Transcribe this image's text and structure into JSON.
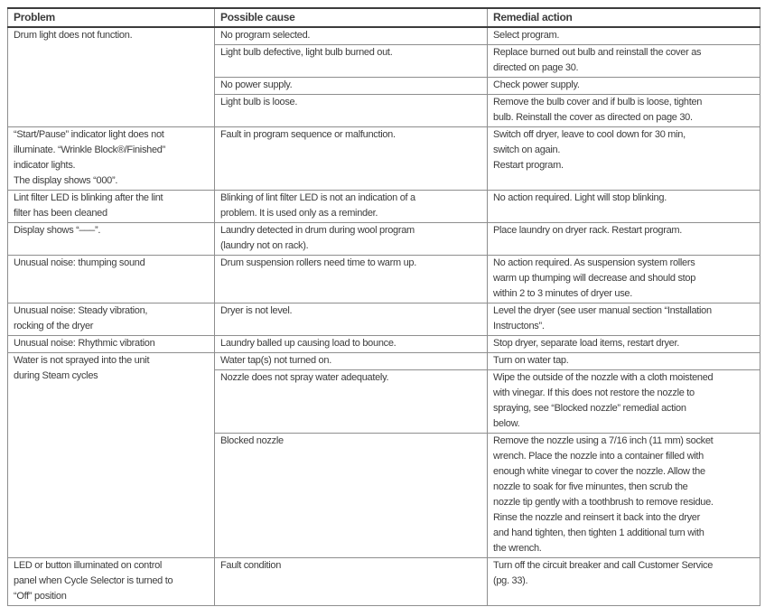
{
  "table": {
    "headers": [
      "Problem",
      "Possible cause",
      "Remedial action"
    ],
    "rows": [
      {
        "problem": "Drum light does not function.",
        "causes": [
          {
            "cause": "No program selected.",
            "action": "Select program."
          },
          {
            "cause": "Light bulb defective, light bulb burned out.",
            "action": "Replace burned out bulb and reinstall the cover as\ndirected on page 30."
          },
          {
            "cause": "No power supply.",
            "action": "Check power supply."
          },
          {
            "cause": "Light bulb is loose.",
            "action": "Remove the bulb cover and if bulb is loose, tighten\nbulb. Reinstall the cover as directed on page 30."
          }
        ]
      },
      {
        "problem": "“Start/Pause” indicator light does not\nilluminate.  “Wrinkle Block®/Finished”\nindicator lights.\nThe display shows “000”.",
        "causes": [
          {
            "cause": "Fault in program sequence or malfunction.",
            "action": "Switch off dryer, leave to cool down for 30 min,\nswitch on again.\nRestart program."
          }
        ]
      },
      {
        "problem": "Lint filter LED is blinking after the lint\nfilter has been cleaned",
        "causes": [
          {
            "cause": "Blinking of lint filter LED is not an indication of a\nproblem.  It is used only as a reminder.",
            "action": "No action required.  Light will stop blinking."
          }
        ]
      },
      {
        "problem": "Display shows “–––”.",
        "causes": [
          {
            "cause": "Laundry detected in drum during wool program\n(laundry not on rack).",
            "action": "Place laundry on dryer rack.  Restart program."
          }
        ]
      },
      {
        "problem": "Unusual noise: thumping sound",
        "causes": [
          {
            "cause": "Drum suspension rollers need time to warm up.",
            "action": "No action required.  As suspension system rollers\nwarm up thumping will decrease and should stop\nwithin 2 to 3 minutes of dryer use."
          }
        ]
      },
      {
        "problem": "Unusual noise: Steady vibration,\nrocking of the dryer",
        "causes": [
          {
            "cause": "Dryer is not level.",
            "action": "Level the dryer (see user manual section “Installation\nInstructons”."
          }
        ]
      },
      {
        "problem": "Unusual noise: Rhythmic vibration",
        "causes": [
          {
            "cause": "Laundry balled up causing load to bounce.",
            "action": "Stop dryer, separate load items, restart dryer."
          }
        ]
      },
      {
        "problem": "Water is not sprayed into the unit\nduring Steam cycles",
        "causes": [
          {
            "cause": "Water tap(s) not turned on.",
            "action": "Turn on water tap."
          },
          {
            "cause": "Nozzle does not spray water adequately.",
            "action": "Wipe the outside of the nozzle with a cloth moistened\nwith vinegar. If this does not restore the nozzle to\nspraying, see “Blocked nozzle” remedial action\nbelow."
          },
          {
            "cause": "Blocked nozzle",
            "action": "Remove the nozzle using a 7/16 inch (11 mm) socket\nwrench.  Place the nozzle into a container filled with\nenough white vinegar to cover the nozzle.  Allow the\nnozzle to soak for five minuntes, then scrub the\nnozzle tip gently with a toothbrush to remove residue.\nRinse the nozzle and reinsert it back into the dryer\nand hand tighten, then tighten 1 additional turn with\nthe wrench."
          }
        ]
      },
      {
        "problem": "LED or button illuminated on control\npanel when Cycle Selector is turned to\n“Off” position",
        "causes": [
          {
            "cause": "Fault condition",
            "action": "Turn off the circuit breaker and call Customer Service\n(pg. 33)."
          }
        ]
      }
    ]
  }
}
